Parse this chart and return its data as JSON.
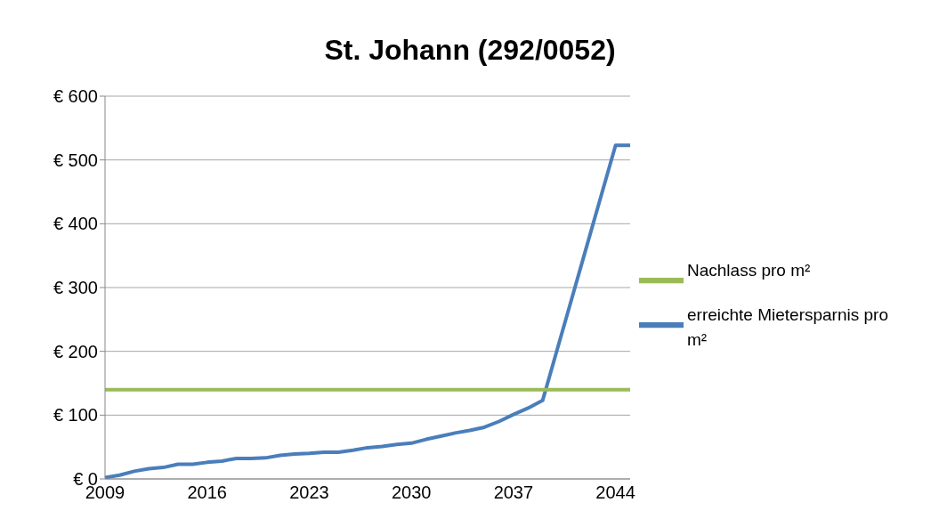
{
  "chart_data": {
    "type": "line",
    "title": "St. Johann (292/0052)",
    "categories": [
      "2009",
      null,
      null,
      null,
      null,
      null,
      null,
      "2016",
      null,
      null,
      null,
      null,
      null,
      null,
      "2023",
      null,
      null,
      null,
      null,
      null,
      null,
      "2030",
      null,
      null,
      null,
      null,
      null,
      null,
      "2037",
      null,
      null,
      null,
      null,
      null,
      null,
      "2044",
      null
    ],
    "series": [
      {
        "name": "erreichte Mietersparnis pro m²",
        "color": "#4a7ebb",
        "values": [
          2,
          6,
          12,
          16,
          18,
          23,
          23,
          26,
          28,
          32,
          32,
          33,
          37,
          39,
          40,
          42,
          42,
          45,
          49,
          51,
          54,
          56,
          62,
          67,
          72,
          76,
          81,
          90,
          101,
          111,
          123,
          203,
          283,
          363,
          443,
          523,
          523
        ]
      },
      {
        "name": "Nachlass pro m²",
        "color": "#9bbb59",
        "values": [
          140,
          140,
          140,
          140,
          140,
          140,
          140,
          140,
          140,
          140,
          140,
          140,
          140,
          140,
          140,
          140,
          140,
          140,
          140,
          140,
          140,
          140,
          140,
          140,
          140,
          140,
          140,
          140,
          140,
          140,
          140,
          140,
          140,
          140,
          140,
          140,
          140
        ]
      }
    ],
    "ylim": [
      0,
      600
    ],
    "yticks": [
      {
        "value": 0,
        "label": "€ 0"
      },
      {
        "value": 100,
        "label": "€ 100"
      },
      {
        "value": 200,
        "label": "€ 200"
      },
      {
        "value": 300,
        "label": "€ 300"
      },
      {
        "value": 400,
        "label": "€ 400"
      },
      {
        "value": 500,
        "label": "€ 500"
      },
      {
        "value": 600,
        "label": "€ 600"
      }
    ],
    "grid": "y",
    "legend": "right",
    "marker": "none",
    "line_style": "solid"
  }
}
